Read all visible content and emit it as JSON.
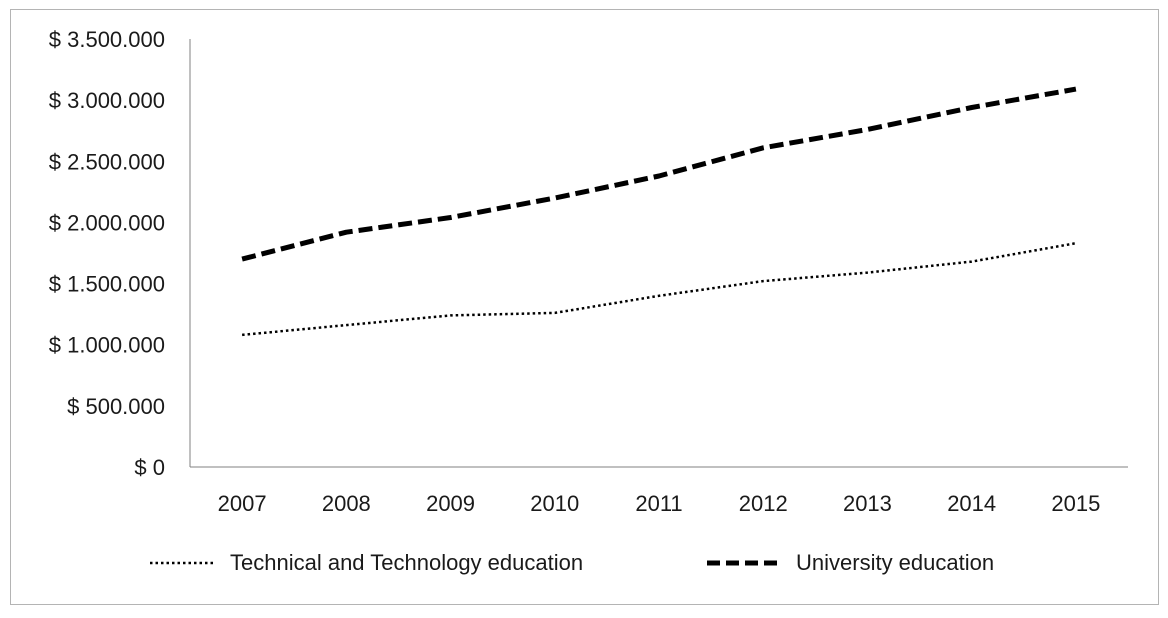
{
  "chart_data": {
    "type": "line",
    "title": "",
    "xlabel": "",
    "ylabel": "",
    "categories": [
      "2007",
      "2008",
      "2009",
      "2010",
      "2011",
      "2012",
      "2013",
      "2014",
      "2015"
    ],
    "ylim": [
      0,
      3500000
    ],
    "yticks": [
      0,
      500000,
      1000000,
      1500000,
      2000000,
      2500000,
      3000000,
      3500000
    ],
    "ytick_labels": [
      "$ 0",
      "$ 500.000",
      "$ 1.000.000",
      "$ 1.500.000",
      "$ 2.000.000",
      "$ 2.500.000",
      "$ 3.000.000",
      "$ 3.500.000"
    ],
    "grid": false,
    "legend_position": "bottom",
    "series": [
      {
        "name": "Technical and Technology education",
        "style": "dotted",
        "color": "#000000",
        "values": [
          1080000,
          1160000,
          1240000,
          1260000,
          1400000,
          1520000,
          1590000,
          1680000,
          1830000
        ]
      },
      {
        "name": "University education",
        "style": "dashed",
        "color": "#000000",
        "values": [
          1700000,
          1920000,
          2040000,
          2200000,
          2380000,
          2610000,
          2760000,
          2940000,
          3090000
        ]
      }
    ]
  }
}
